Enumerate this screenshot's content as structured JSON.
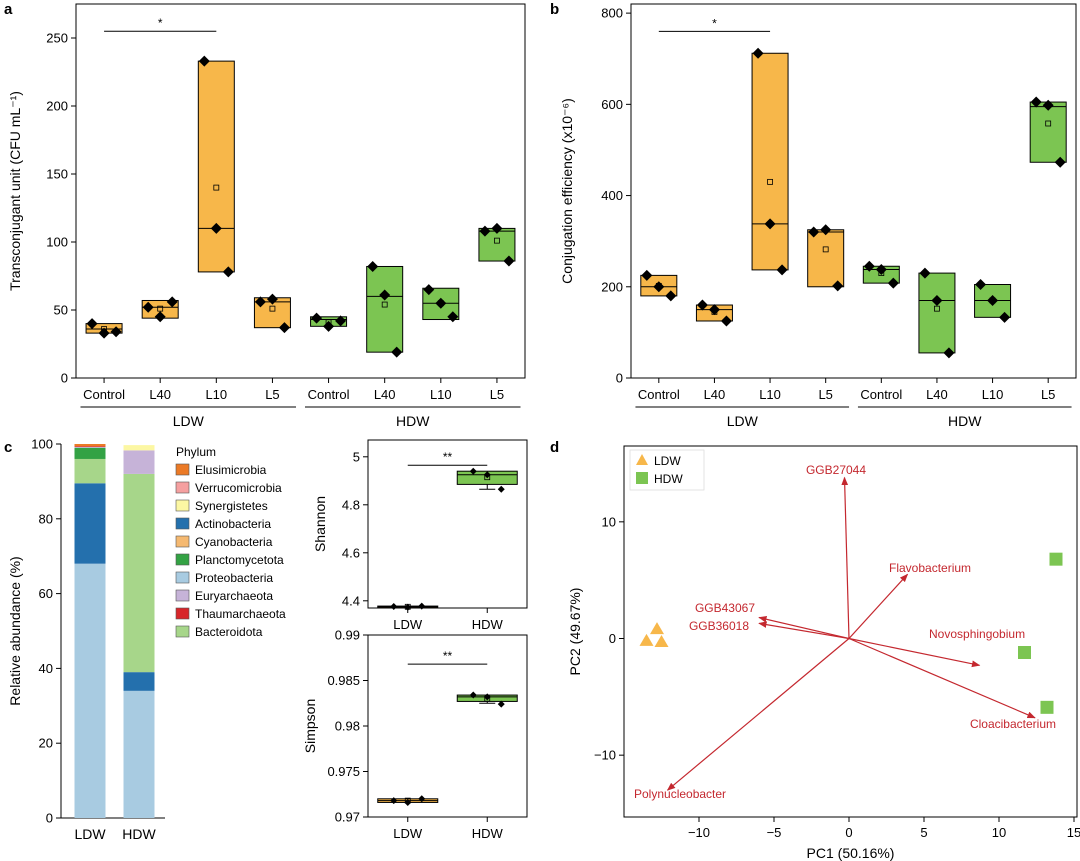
{
  "colors": {
    "ldw": "#f7b74a",
    "hdw": "#7cc552",
    "arrow": "#c4282f",
    "axis": "#000000"
  },
  "chart_data": [
    {
      "panel": "a",
      "type": "box",
      "ylabel": "Transconjugant unit (CFU mL⁻¹)",
      "ylim": [
        0,
        275
      ],
      "yticks": [
        0,
        50,
        100,
        150,
        200,
        250
      ],
      "categories": [
        "Control",
        "L40",
        "L10",
        "L5",
        "Control",
        "L40",
        "L10",
        "L5"
      ],
      "groups": [
        {
          "label": "LDW",
          "from": 0,
          "to": 3
        },
        {
          "label": "HDW",
          "from": 4,
          "to": 7
        }
      ],
      "boxes": [
        {
          "group": "LDW",
          "q1": 33,
          "median": 36,
          "q3": 40,
          "mean": 36,
          "points": [
            40,
            33,
            34
          ]
        },
        {
          "group": "LDW",
          "q1": 44,
          "median": 52,
          "q3": 57,
          "mean": 51,
          "points": [
            52,
            45,
            56
          ]
        },
        {
          "group": "LDW",
          "q1": 78,
          "median": 110,
          "q3": 233,
          "mean": 140,
          "points": [
            233,
            110,
            78
          ]
        },
        {
          "group": "LDW",
          "q1": 37,
          "median": 56,
          "q3": 59,
          "mean": 51,
          "points": [
            56,
            58,
            37
          ]
        },
        {
          "group": "HDW",
          "q1": 38,
          "median": 43,
          "q3": 45,
          "mean": 41,
          "points": [
            44,
            38,
            42
          ]
        },
        {
          "group": "HDW",
          "q1": 19,
          "median": 60,
          "q3": 82,
          "mean": 54,
          "points": [
            82,
            61,
            19
          ]
        },
        {
          "group": "HDW",
          "q1": 43,
          "median": 55,
          "q3": 66,
          "mean": 55,
          "points": [
            65,
            55,
            45
          ]
        },
        {
          "group": "HDW",
          "q1": 86,
          "median": 108,
          "q3": 110,
          "mean": 101,
          "points": [
            108,
            110,
            86
          ]
        }
      ],
      "significance": {
        "from": 0,
        "to": 2,
        "label": "*",
        "y": 255
      }
    },
    {
      "panel": "b",
      "type": "box",
      "ylabel": "Conjugation  efficiency (x10⁻⁶)",
      "ylim": [
        0,
        820
      ],
      "yticks": [
        0,
        200,
        400,
        600,
        800
      ],
      "categories": [
        "Control",
        "L40",
        "L10",
        "L5",
        "Control",
        "L40",
        "L10",
        "L5"
      ],
      "groups": [
        {
          "label": "LDW",
          "from": 0,
          "to": 3
        },
        {
          "label": "HDW",
          "from": 4,
          "to": 7
        }
      ],
      "boxes": [
        {
          "group": "LDW",
          "q1": 180,
          "median": 200,
          "q3": 225,
          "mean": 202,
          "points": [
            225,
            200,
            180
          ]
        },
        {
          "group": "LDW",
          "q1": 125,
          "median": 150,
          "q3": 160,
          "mean": 145,
          "points": [
            160,
            150,
            125
          ]
        },
        {
          "group": "LDW",
          "q1": 237,
          "median": 338,
          "q3": 712,
          "mean": 430,
          "points": [
            712,
            338,
            237
          ]
        },
        {
          "group": "LDW",
          "q1": 200,
          "median": 320,
          "q3": 325,
          "mean": 282,
          "points": [
            320,
            325,
            202
          ]
        },
        {
          "group": "HDW",
          "q1": 208,
          "median": 238,
          "q3": 245,
          "mean": 230,
          "points": [
            245,
            238,
            208
          ]
        },
        {
          "group": "HDW",
          "q1": 55,
          "median": 170,
          "q3": 230,
          "mean": 152,
          "points": [
            230,
            170,
            55
          ]
        },
        {
          "group": "HDW",
          "q1": 133,
          "median": 170,
          "q3": 205,
          "mean": 170,
          "points": [
            205,
            170,
            133
          ]
        },
        {
          "group": "HDW",
          "q1": 473,
          "median": 595,
          "q3": 605,
          "mean": 558,
          "points": [
            605,
            598,
            473
          ]
        }
      ],
      "significance": {
        "from": 0,
        "to": 2,
        "label": "*",
        "y": 760
      }
    },
    {
      "panel": "c",
      "type": "stacked-bar",
      "ylabel": "Relative abundance (%)",
      "ylim": [
        0,
        100
      ],
      "yticks": [
        0,
        20,
        40,
        60,
        80,
        100
      ],
      "categories": [
        "LDW",
        "HDW"
      ],
      "legend_title": "Phylum",
      "series": [
        {
          "name": "Proteobacteria",
          "color": "#a8cbe1",
          "values": [
            68,
            34
          ]
        },
        {
          "name": "Cyanobacteria",
          "color": "#f5b971",
          "values": [
            0,
            0
          ]
        },
        {
          "name": "Actinobacteria",
          "color": "#2470ad",
          "values": [
            21.5,
            5
          ]
        },
        {
          "name": "Bacteroidota",
          "color": "#a7d68a",
          "values": [
            6.5,
            53
          ]
        },
        {
          "name": "Planctomycetota",
          "color": "#33a244",
          "values": [
            3,
            0
          ]
        },
        {
          "name": "Euryarchaeota",
          "color": "#c6b3d8",
          "values": [
            0.2,
            6.3
          ]
        },
        {
          "name": "Synergistetes",
          "color": "#fcf7a3",
          "values": [
            0,
            1.4
          ]
        },
        {
          "name": "Verrucomicrobia",
          "color": "#f5a0a0",
          "values": [
            0,
            0
          ]
        },
        {
          "name": "Thaumarchaeota",
          "color": "#d7262a",
          "values": [
            0.2,
            0
          ]
        },
        {
          "name": "Elusimicrobia",
          "color": "#eb7a26",
          "values": [
            0.6,
            0
          ]
        }
      ],
      "legend_order": [
        "Elusimicrobia",
        "Verrucomicrobia",
        "Synergistetes",
        "Actinobacteria",
        "Cyanobacteria",
        "Planctomycetota",
        "Proteobacteria",
        "Euryarchaeota",
        "Thaumarchaeota",
        "Bacteroidota"
      ]
    },
    {
      "panel": "c-shannon",
      "type": "box",
      "ylabel": "Shannon",
      "ylim": [
        4.37,
        5.07
      ],
      "yticks": [
        4.4,
        4.6,
        4.8,
        5.0
      ],
      "categories": [
        "LDW",
        "HDW"
      ],
      "boxes": [
        {
          "group": "LDW",
          "q1": 4.372,
          "median": 4.375,
          "q3": 4.378,
          "mean": 4.375,
          "points": [
            4.376,
            4.373,
            4.378
          ]
        },
        {
          "group": "HDW",
          "q1": 4.885,
          "median": 4.925,
          "q3": 4.94,
          "mean": 4.915,
          "whisker_low": 4.865,
          "points": [
            4.94,
            4.925,
            4.865
          ]
        }
      ],
      "significance": {
        "from": 0,
        "to": 1,
        "label": "**",
        "y": 4.965
      }
    },
    {
      "panel": "c-simpson",
      "type": "box",
      "ylabel": "Simpson",
      "ylim": [
        0.97,
        0.99
      ],
      "yticks": [
        0.97,
        0.975,
        0.98,
        0.985,
        0.99
      ],
      "categories": [
        "LDW",
        "HDW"
      ],
      "boxes": [
        {
          "group": "LDW",
          "q1": 0.9716,
          "median": 0.9718,
          "q3": 0.972,
          "mean": 0.9718,
          "points": [
            0.9718,
            0.9716,
            0.972
          ]
        },
        {
          "group": "HDW",
          "q1": 0.9827,
          "median": 0.9832,
          "q3": 0.9834,
          "mean": 0.983,
          "whisker_low": 0.9825,
          "points": [
            0.9834,
            0.9832,
            0.9824
          ]
        }
      ],
      "significance": {
        "from": 0,
        "to": 1,
        "label": "**",
        "y": 0.9868
      }
    },
    {
      "panel": "d",
      "type": "biplot",
      "xlabel": "PC1 (50.16%)",
      "ylabel": "PC2 (49.67%)",
      "xlim": [
        -15,
        15.2
      ],
      "ylim": [
        -15.3,
        16.5
      ],
      "xticks": [
        -10,
        -5,
        0,
        5,
        10,
        15
      ],
      "yticks": [
        -10,
        0,
        10
      ],
      "points": [
        {
          "group": "LDW",
          "shape": "triangle",
          "x": -13.5,
          "y": -0.2
        },
        {
          "group": "LDW",
          "shape": "triangle",
          "x": -12.8,
          "y": 0.8
        },
        {
          "group": "LDW",
          "shape": "triangle",
          "x": -12.5,
          "y": -0.3
        },
        {
          "group": "HDW",
          "shape": "square",
          "x": 13.8,
          "y": 6.8
        },
        {
          "group": "HDW",
          "shape": "square",
          "x": 11.7,
          "y": -1.2
        },
        {
          "group": "HDW",
          "shape": "square",
          "x": 13.2,
          "y": -5.9
        }
      ],
      "arrows": [
        {
          "label": "GGB27044",
          "x": -0.3,
          "y": 13.8
        },
        {
          "label": "Flavobacterium",
          "x": 3.9,
          "y": 5.5
        },
        {
          "label": "GGB43067",
          "x": -6.0,
          "y": 1.8
        },
        {
          "label": "GGB36018",
          "x": -6.0,
          "y": 1.3
        },
        {
          "label": "Novosphingobium",
          "x": 8.7,
          "y": -2.3
        },
        {
          "label": "Cloacibacterium",
          "x": 12.4,
          "y": -6.8
        },
        {
          "label": "Polynucleobacter",
          "x": -12.1,
          "y": -13.0
        }
      ],
      "legend": [
        "LDW",
        "HDW"
      ]
    }
  ],
  "panel_letters": [
    "a",
    "b",
    "c",
    "d"
  ]
}
